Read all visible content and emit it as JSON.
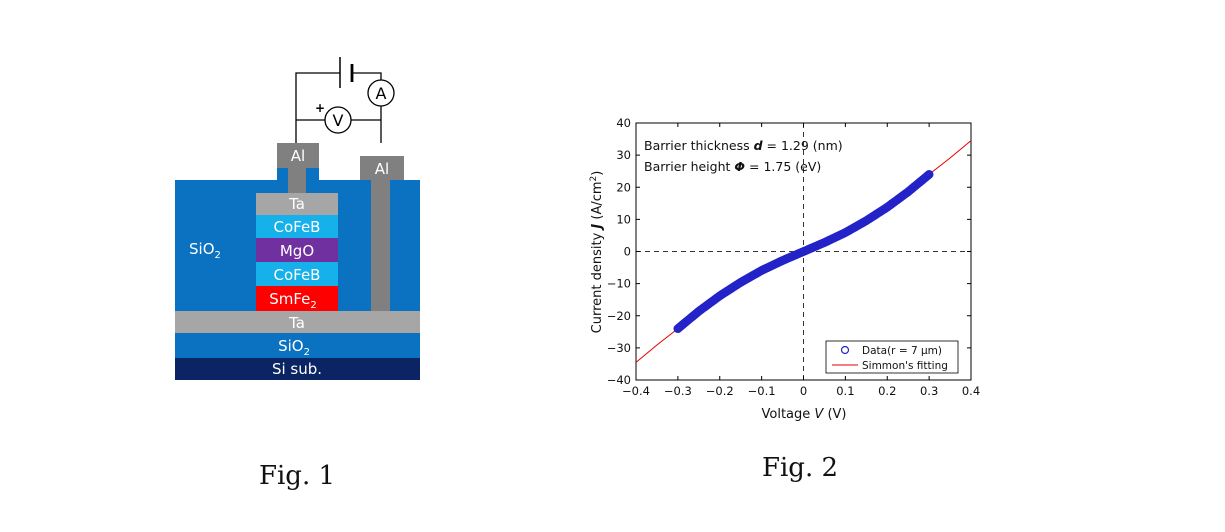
{
  "fig1": {
    "caption": "Fig. 1",
    "layers": {
      "al_left": "Al",
      "al_right": "Al",
      "ta_top": "Ta",
      "cofeb_top": "CoFeB",
      "mgo": "MgO",
      "cofeb_bottom": "CoFeB",
      "smfe_base": "SmFe",
      "smfe_sub": "2",
      "ta_bottom": "Ta",
      "sio2_bottom_base": "SiO",
      "sio2_bottom_sub": "2",
      "si_sub": "Si sub.",
      "sio2_side_base": "SiO",
      "sio2_side_sub": "2"
    },
    "circuit": {
      "voltmeter": "V",
      "ammeter": "A",
      "plus": "+"
    },
    "colors": {
      "sio2": "#0a72c0",
      "ta": "#a6a6a6",
      "cofeb": "#16b0ea",
      "mgo": "#7030a0",
      "smfe2": "#ff0000",
      "si_sub": "#0b2463",
      "al": "#808080"
    }
  },
  "fig2": {
    "caption": "Fig. 2",
    "chart_data": {
      "type": "scatter",
      "xlabel": "Voltage V (V)",
      "ylabel": "Current density J (A/cm²)",
      "xlim": [
        -0.4,
        0.4
      ],
      "ylim": [
        -40,
        40
      ],
      "xticks": [
        "−0.4",
        "−0.3",
        "−0.2",
        "−0.1",
        "0",
        "0.1",
        "0.2",
        "0.3",
        "0.4"
      ],
      "yticks": [
        "−40",
        "−30",
        "−20",
        "−10",
        "0",
        "10",
        "20",
        "30",
        "40"
      ],
      "grid": false,
      "reference_lines": {
        "x": 0,
        "y": 0,
        "style": "dashed"
      },
      "annotations": {
        "line1": {
          "prefix": "Barrier thickness ",
          "sym": "d",
          "value": " = 1.29 (nm)"
        },
        "line2": {
          "prefix": "Barrier height ",
          "sym": "Φ",
          "value": " = 1.75 (eV)"
        }
      },
      "legend_position": "bottom-right",
      "series": [
        {
          "name": "Data(r = 7 μm)",
          "kind": "markers",
          "color": "#2323c8",
          "x": [
            -0.3,
            -0.25,
            -0.2,
            -0.15,
            -0.1,
            -0.05,
            0,
            0.05,
            0.1,
            0.15,
            0.2,
            0.25,
            0.3
          ],
          "y": [
            -24,
            -18.6,
            -13.8,
            -9.6,
            -5.9,
            -2.8,
            0,
            2.8,
            5.9,
            9.6,
            13.8,
            18.6,
            24
          ]
        },
        {
          "name": "Simmon's fitting",
          "kind": "line",
          "color": "#e60000",
          "x": [
            -0.4,
            -0.35,
            -0.3,
            -0.25,
            -0.2,
            -0.15,
            -0.1,
            -0.05,
            0,
            0.05,
            0.1,
            0.15,
            0.2,
            0.25,
            0.3,
            0.35,
            0.4
          ],
          "y": [
            -34.5,
            -29.1,
            -24,
            -18.6,
            -13.8,
            -9.6,
            -5.9,
            -2.8,
            0,
            2.8,
            5.9,
            9.6,
            13.8,
            18.6,
            24,
            29.1,
            34.5
          ]
        }
      ]
    }
  }
}
